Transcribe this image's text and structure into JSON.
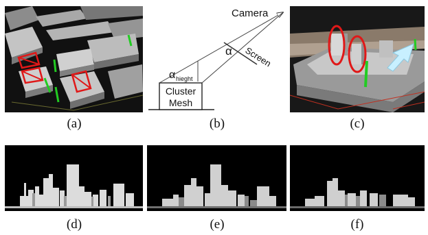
{
  "figure": {
    "captions": {
      "a": "(a)",
      "b": "(b)",
      "c": "(c)",
      "d": "(d)",
      "e": "(e)",
      "f": "(f)"
    },
    "diagram_b": {
      "camera_label": "Camera",
      "screen_label": "Screen",
      "alpha_label": "α",
      "alpha_height_symbol": "α",
      "alpha_height_subscript": "hieght",
      "cluster_mesh_line1": "Cluster",
      "cluster_mesh_line2": "Mesh"
    },
    "colors": {
      "highlight_red": "#e01818",
      "marker_green": "#22cc22",
      "arrow_cyan": "#c8f0ff"
    }
  }
}
